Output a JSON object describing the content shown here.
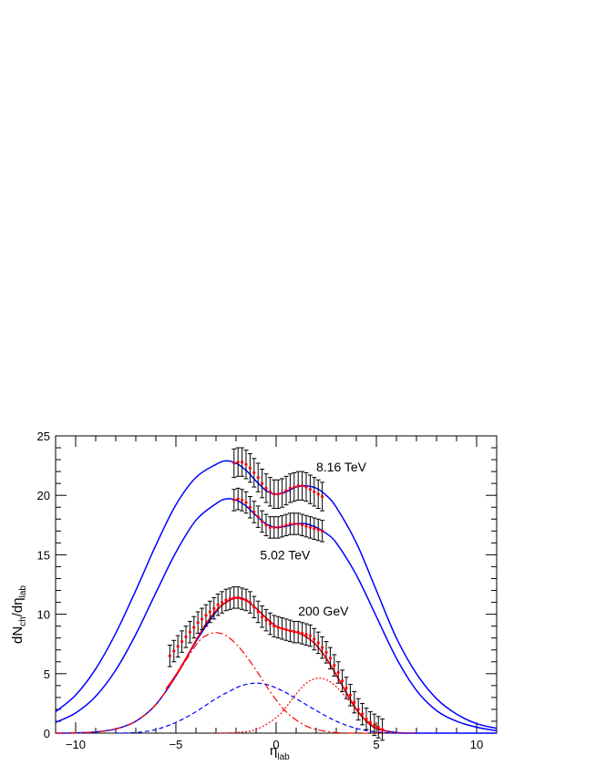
{
  "chart_data": {
    "type": "line",
    "xlabel_main": "η",
    "xlabel_sub": "lab",
    "ylabel": {
      "d": "dN",
      "sub1": "ch",
      "mid": "/dη",
      "sub2": "lab"
    },
    "xlim": [
      -11,
      11
    ],
    "ylim": [
      0,
      25
    ],
    "x_ticks": [
      -10,
      -5,
      0,
      5,
      10
    ],
    "y_ticks": [
      0,
      5,
      10,
      15,
      20,
      25
    ],
    "x_tick_labels": [
      "−10",
      "−5",
      "0",
      "5",
      "10"
    ],
    "y_tick_labels": [
      "0",
      "5",
      "10",
      "15",
      "20",
      "25"
    ],
    "grid": false,
    "annotations": [
      {
        "text": "8.16 TeV",
        "x": 2,
        "y": 22
      },
      {
        "text": "5.02 TeV",
        "x": -0.8,
        "y": 14.6
      },
      {
        "text": "200 GeV",
        "x": 1.1,
        "y": 9.9
      }
    ],
    "series": [
      {
        "color": "#0000ff",
        "style": "solid",
        "role": "fit",
        "x": [
          -11,
          -10,
          -9,
          -8,
          -7,
          -6,
          -5,
          -4,
          -3,
          -2.5,
          -2,
          -1.5,
          -1,
          -0.5,
          0,
          0.5,
          1,
          1.5,
          2,
          2.5,
          3,
          4,
          5,
          6,
          7,
          8,
          9,
          10,
          11
        ],
        "y": [
          1.8,
          3.2,
          5.4,
          8.4,
          12.0,
          15.8,
          19.2,
          21.5,
          22.6,
          22.9,
          22.7,
          22.1,
          21.2,
          20.4,
          20.1,
          20.3,
          20.7,
          20.8,
          20.6,
          20.0,
          19.0,
          16.0,
          12.0,
          8.0,
          5.0,
          2.9,
          1.6,
          0.8,
          0.4
        ]
      },
      {
        "color": "#0000ff",
        "style": "solid",
        "role": "fit",
        "x": [
          -11,
          -10,
          -9,
          -8,
          -7,
          -6,
          -5,
          -4,
          -3,
          -2.5,
          -2,
          -1.5,
          -1,
          -0.5,
          0,
          0.5,
          1,
          1.5,
          2,
          2.5,
          3,
          4,
          5,
          6,
          7,
          8,
          9,
          10,
          11
        ],
        "y": [
          0.9,
          1.7,
          3.1,
          5.3,
          8.3,
          11.8,
          15.2,
          17.9,
          19.3,
          19.7,
          19.6,
          19.1,
          18.3,
          17.6,
          17.3,
          17.4,
          17.6,
          17.6,
          17.3,
          16.8,
          16.0,
          13.3,
          9.8,
          6.3,
          3.6,
          1.9,
          1.0,
          0.5,
          0.2
        ]
      },
      {
        "color": "#0000ff",
        "style": "solid",
        "role": "fit",
        "x": [
          -11,
          -10,
          -9,
          -8,
          -7,
          -6,
          -5,
          -4,
          -3,
          -2.5,
          -2,
          -1.5,
          -1,
          -0.5,
          0,
          0.5,
          1,
          1.5,
          2,
          2.5,
          3,
          3.5,
          4,
          4.5,
          5,
          6,
          7,
          8,
          9,
          10,
          11
        ],
        "y": [
          0,
          0.02,
          0.1,
          0.35,
          1.0,
          2.4,
          4.8,
          7.7,
          10.2,
          11.0,
          11.4,
          11.2,
          10.5,
          9.7,
          9.0,
          8.7,
          8.5,
          8.1,
          7.4,
          6.3,
          4.9,
          3.4,
          2.0,
          1.0,
          0.4,
          0.05,
          0,
          0,
          0,
          0,
          0
        ]
      },
      {
        "color": "#ff0000",
        "style": "solid",
        "role": "fit",
        "x": [
          -5.5,
          -5,
          -4.5,
          -4,
          -3.5,
          -3,
          -2.5,
          -2,
          -1.5,
          -1,
          -0.5,
          0,
          0.5,
          1,
          1.5,
          2,
          2.5,
          3,
          3.5,
          4,
          4.5,
          5,
          5.5
        ],
        "y": [
          3.7,
          4.9,
          6.3,
          7.8,
          9.2,
          10.3,
          11.0,
          11.35,
          11.15,
          10.5,
          9.7,
          9.0,
          8.7,
          8.5,
          8.1,
          7.4,
          6.3,
          4.9,
          3.4,
          2.0,
          1.0,
          0.4,
          0.15
        ]
      },
      {
        "color": "#ff0000",
        "style": "dashdot",
        "role": "component",
        "x": [
          -11,
          -10,
          -9,
          -8,
          -7,
          -6,
          -5,
          -4,
          -3.5,
          -3,
          -2.5,
          -2,
          -1.5,
          -1,
          -0.5,
          0,
          0.5,
          1,
          1.5,
          2,
          3,
          4,
          5,
          6
        ],
        "y": [
          0,
          0.02,
          0.1,
          0.35,
          1.0,
          2.4,
          4.8,
          7.4,
          8.2,
          8.45,
          8.2,
          7.5,
          6.5,
          5.3,
          4.0,
          2.8,
          1.8,
          1.1,
          0.6,
          0.3,
          0.05,
          0,
          0,
          0
        ]
      },
      {
        "color": "#0000ff",
        "style": "dashed",
        "role": "component",
        "x": [
          -8,
          -7,
          -6,
          -5,
          -4,
          -3,
          -2,
          -1.5,
          -1,
          -0.5,
          0,
          0.5,
          1,
          2,
          3,
          4,
          5,
          6,
          7
        ],
        "y": [
          0,
          0.05,
          0.3,
          0.9,
          1.8,
          2.9,
          3.8,
          4.1,
          4.2,
          4.1,
          3.8,
          3.4,
          2.9,
          1.9,
          1.0,
          0.4,
          0.1,
          0,
          0
        ]
      },
      {
        "color": "#ff0000",
        "style": "dotted",
        "role": "component",
        "x": [
          -3,
          -2,
          -1,
          0,
          0.5,
          1,
          1.5,
          2,
          2.5,
          3,
          3.5,
          4,
          4.5,
          5,
          5.5,
          6,
          7
        ],
        "y": [
          0,
          0.05,
          0.3,
          1.3,
          2.2,
          3.3,
          4.2,
          4.6,
          4.5,
          3.9,
          3.0,
          2.0,
          1.1,
          0.5,
          0.2,
          0.05,
          0
        ]
      }
    ],
    "measurements": [
      {
        "color": "#ff0000",
        "x": [
          -2.1,
          -1.9,
          -1.7,
          -1.5,
          -1.3,
          -1.1,
          -0.9,
          -0.7,
          -0.5,
          -0.3,
          -0.1,
          0.1,
          0.3,
          0.5,
          0.7,
          0.9,
          1.1,
          1.3,
          1.5,
          1.7,
          1.9,
          2.1,
          2.3
        ],
        "y": [
          22.7,
          22.8,
          22.8,
          22.6,
          22.3,
          21.9,
          21.5,
          21.0,
          20.6,
          20.3,
          20.1,
          20.1,
          20.2,
          20.4,
          20.6,
          20.7,
          20.8,
          20.8,
          20.7,
          20.5,
          20.3,
          20.1,
          19.9
        ],
        "err": 1.2
      },
      {
        "color": "#ff0000",
        "x": [
          -2.1,
          -1.9,
          -1.7,
          -1.5,
          -1.3,
          -1.1,
          -0.9,
          -0.7,
          -0.5,
          -0.3,
          -0.1,
          0.1,
          0.3,
          0.5,
          0.7,
          0.9,
          1.1,
          1.3,
          1.5,
          1.7,
          1.9,
          2.1,
          2.3
        ],
        "y": [
          19.6,
          19.7,
          19.6,
          19.4,
          19.0,
          18.6,
          18.2,
          17.8,
          17.5,
          17.3,
          17.3,
          17.3,
          17.4,
          17.5,
          17.6,
          17.6,
          17.6,
          17.5,
          17.4,
          17.3,
          17.2,
          17.1,
          17.0
        ],
        "err": 0.9
      },
      {
        "color": "#ff0000",
        "x": [
          -5.3,
          -5.1,
          -4.9,
          -4.7,
          -4.5,
          -4.3,
          -4.1,
          -3.9,
          -3.7,
          -3.5,
          -3.3,
          -3.1,
          -2.9,
          -2.7,
          -2.5,
          -2.3,
          -2.1,
          -1.9,
          -1.7,
          -1.5,
          -1.3,
          -1.1,
          -0.9,
          -0.7,
          -0.5,
          -0.3,
          -0.1,
          0.1,
          0.3,
          0.5,
          0.7,
          0.9,
          1.1,
          1.3,
          1.5,
          1.7,
          1.9,
          2.1,
          2.3,
          2.5,
          2.7,
          2.9,
          3.1,
          3.3,
          3.5,
          3.7,
          3.9,
          4.1,
          4.3,
          4.5,
          4.7,
          4.9,
          5.1,
          5.3
        ],
        "y": [
          6.5,
          6.9,
          7.3,
          7.7,
          8.1,
          8.5,
          8.9,
          9.3,
          9.6,
          9.9,
          10.2,
          10.5,
          10.8,
          11.0,
          11.2,
          11.3,
          11.4,
          11.4,
          11.3,
          11.2,
          11.0,
          10.6,
          10.2,
          9.8,
          9.5,
          9.2,
          9.0,
          8.9,
          8.8,
          8.7,
          8.6,
          8.5,
          8.5,
          8.4,
          8.3,
          8.2,
          7.9,
          7.6,
          7.2,
          6.8,
          6.3,
          5.7,
          5.1,
          4.4,
          3.8,
          3.2,
          2.6,
          2.0,
          1.6,
          1.2,
          0.9,
          0.7,
          0.5,
          0.3
        ],
        "err": 0.9
      }
    ]
  }
}
